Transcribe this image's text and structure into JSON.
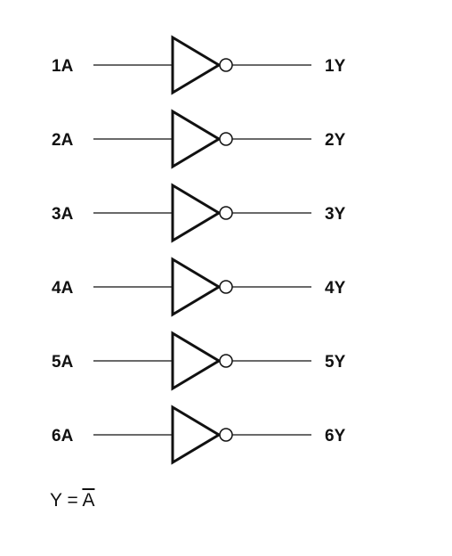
{
  "gates": [
    {
      "input": "1A",
      "output": "1Y"
    },
    {
      "input": "2A",
      "output": "2Y"
    },
    {
      "input": "3A",
      "output": "3Y"
    },
    {
      "input": "4A",
      "output": "4Y"
    },
    {
      "input": "5A",
      "output": "5Y"
    },
    {
      "input": "6A",
      "output": "6Y"
    }
  ],
  "equation": {
    "lhs": "Y",
    "op": "=",
    "rhs": "A"
  }
}
